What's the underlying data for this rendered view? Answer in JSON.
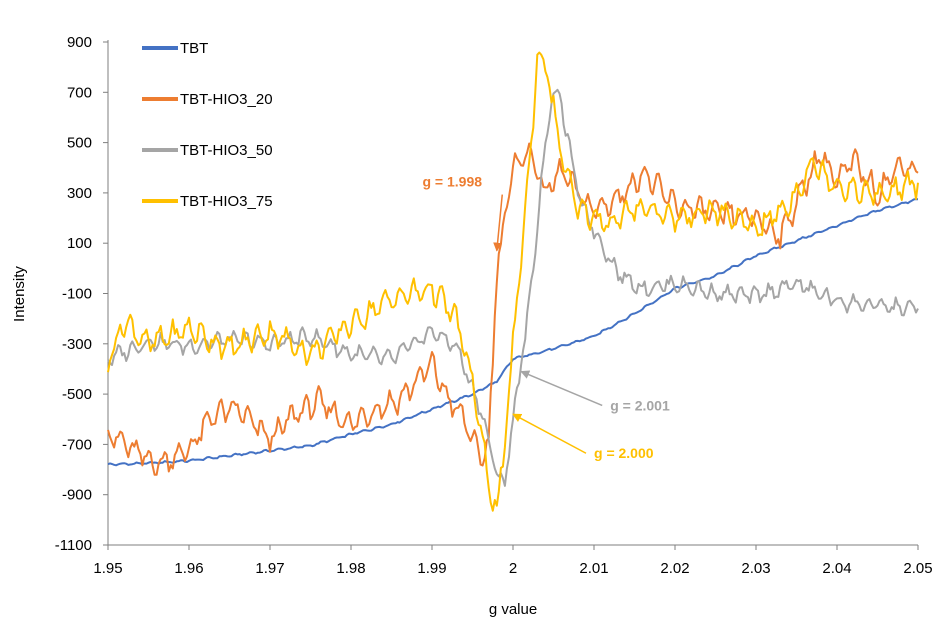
{
  "chart_data": {
    "type": "line",
    "title": "",
    "xlabel": "g value",
    "ylabel": "Intensity",
    "xlim": [
      1.95,
      2.05
    ],
    "ylim": [
      -1100,
      900
    ],
    "grid": false,
    "legend_position": "top-left",
    "x_ticks": [
      "1.95",
      "1.96",
      "1.97",
      "1.98",
      "1.99",
      "2",
      "2.01",
      "2.02",
      "2.03",
      "2.04",
      "2.05"
    ],
    "y_ticks": [
      "900",
      "700",
      "500",
      "300",
      "100",
      "-100",
      "-300",
      "-500",
      "-700",
      "-900",
      "-1100"
    ],
    "series": [
      {
        "name": "TBT",
        "color": "#4472C4",
        "points": [
          [
            1.95,
            -780
          ],
          [
            1.955,
            -775
          ],
          [
            1.96,
            -765
          ],
          [
            1.965,
            -745
          ],
          [
            1.97,
            -725
          ],
          [
            1.975,
            -705
          ],
          [
            1.98,
            -660
          ],
          [
            1.985,
            -620
          ],
          [
            1.99,
            -560
          ],
          [
            1.995,
            -500
          ],
          [
            1.998,
            -450
          ],
          [
            2.0,
            -360
          ],
          [
            2.005,
            -320
          ],
          [
            2.01,
            -270
          ],
          [
            2.015,
            -180
          ],
          [
            2.02,
            -80
          ],
          [
            2.025,
            -30
          ],
          [
            2.03,
            50
          ],
          [
            2.035,
            110
          ],
          [
            2.04,
            170
          ],
          [
            2.045,
            230
          ],
          [
            2.05,
            275
          ]
        ]
      },
      {
        "name": "TBT-HIO3_20",
        "color": "#ED7D31",
        "points": [
          [
            1.95,
            -650
          ],
          [
            1.953,
            -720
          ],
          [
            1.956,
            -780
          ],
          [
            1.96,
            -720
          ],
          [
            1.963,
            -580
          ],
          [
            1.966,
            -560
          ],
          [
            1.97,
            -680
          ],
          [
            1.973,
            -580
          ],
          [
            1.976,
            -530
          ],
          [
            1.98,
            -620
          ],
          [
            1.983,
            -560
          ],
          [
            1.986,
            -520
          ],
          [
            1.99,
            -380
          ],
          [
            1.992,
            -520
          ],
          [
            1.994,
            -600
          ],
          [
            1.996,
            -760
          ],
          [
            1.997,
            -700
          ],
          [
            1.998,
            0
          ],
          [
            1.999,
            200
          ],
          [
            2.0,
            400
          ],
          [
            2.002,
            470
          ],
          [
            2.004,
            300
          ],
          [
            2.006,
            390
          ],
          [
            2.008,
            300
          ],
          [
            2.01,
            230
          ],
          [
            2.013,
            280
          ],
          [
            2.016,
            380
          ],
          [
            2.02,
            250
          ],
          [
            2.025,
            220
          ],
          [
            2.03,
            200
          ],
          [
            2.033,
            130
          ],
          [
            2.036,
            330
          ],
          [
            2.038,
            460
          ],
          [
            2.04,
            340
          ],
          [
            2.042,
            430
          ],
          [
            2.045,
            300
          ],
          [
            2.048,
            420
          ],
          [
            2.05,
            380
          ]
        ]
      },
      {
        "name": "TBT-HIO3_50",
        "color": "#A5A5A5",
        "points": [
          [
            1.95,
            -360
          ],
          [
            1.955,
            -290
          ],
          [
            1.96,
            -310
          ],
          [
            1.965,
            -280
          ],
          [
            1.97,
            -300
          ],
          [
            1.975,
            -270
          ],
          [
            1.98,
            -340
          ],
          [
            1.985,
            -360
          ],
          [
            1.99,
            -250
          ],
          [
            1.993,
            -310
          ],
          [
            1.996,
            -560
          ],
          [
            1.998,
            -820
          ],
          [
            1.999,
            -850
          ],
          [
            2.0,
            -600
          ],
          [
            2.002,
            -150
          ],
          [
            2.004,
            500
          ],
          [
            2.005,
            710
          ],
          [
            2.006,
            650
          ],
          [
            2.008,
            300
          ],
          [
            2.01,
            150
          ],
          [
            2.013,
            -20
          ],
          [
            2.016,
            -80
          ],
          [
            2.02,
            -60
          ],
          [
            2.025,
            -100
          ],
          [
            2.03,
            -110
          ],
          [
            2.035,
            -60
          ],
          [
            2.04,
            -130
          ],
          [
            2.045,
            -150
          ],
          [
            2.05,
            -160
          ]
        ]
      },
      {
        "name": "TBT-HIO3_75",
        "color": "#FFC000",
        "points": [
          [
            1.95,
            -370
          ],
          [
            1.952,
            -210
          ],
          [
            1.955,
            -300
          ],
          [
            1.96,
            -240
          ],
          [
            1.965,
            -320
          ],
          [
            1.97,
            -250
          ],
          [
            1.975,
            -340
          ],
          [
            1.98,
            -220
          ],
          [
            1.985,
            -120
          ],
          [
            1.99,
            -80
          ],
          [
            1.993,
            -200
          ],
          [
            1.995,
            -450
          ],
          [
            1.997,
            -850
          ],
          [
            1.998,
            -970
          ],
          [
            1.999,
            -700
          ],
          [
            2.0,
            -300
          ],
          [
            2.001,
            50
          ],
          [
            2.002,
            400
          ],
          [
            2.003,
            840
          ],
          [
            2.004,
            820
          ],
          [
            2.006,
            450
          ],
          [
            2.008,
            230
          ],
          [
            2.012,
            180
          ],
          [
            2.016,
            250
          ],
          [
            2.02,
            200
          ],
          [
            2.025,
            230
          ],
          [
            2.03,
            160
          ],
          [
            2.034,
            250
          ],
          [
            2.037,
            420
          ],
          [
            2.04,
            330
          ],
          [
            2.045,
            290
          ],
          [
            2.05,
            340
          ]
        ]
      }
    ],
    "annotations": [
      {
        "text": "g = 1.998",
        "color": "#ED7D31",
        "point_to": [
          1.998,
          70
        ],
        "label_at": [
          1.9925,
          325
        ]
      },
      {
        "text": "g = 2.001",
        "color": "#A5A5A5",
        "point_to": [
          2.001,
          -410
        ],
        "label_at": [
          2.012,
          -565
        ]
      },
      {
        "text": "g = 2.000",
        "color": "#FFC000",
        "point_to": [
          2.0,
          -580
        ],
        "label_at": [
          2.01,
          -755
        ]
      }
    ]
  }
}
